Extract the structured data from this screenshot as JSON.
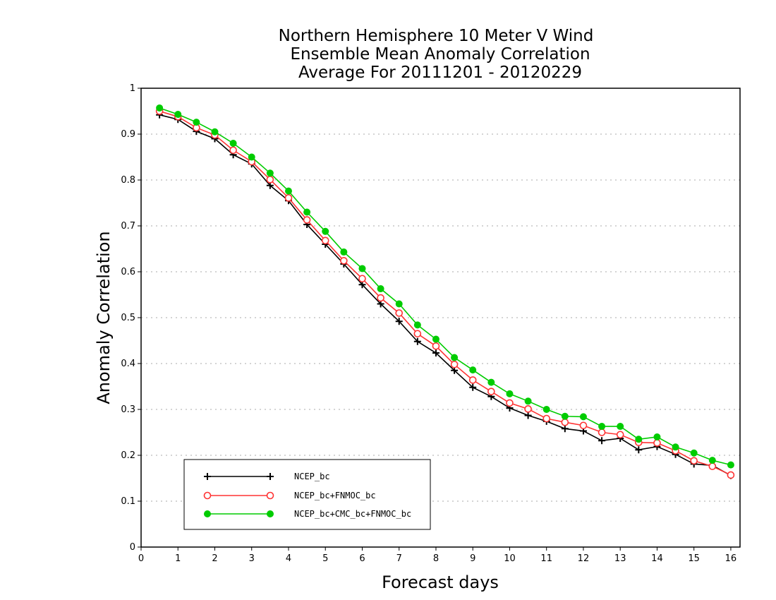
{
  "chart_data": {
    "type": "line",
    "title": [
      "Northern Hemisphere 10 Meter V Wind",
      "Ensemble Mean Anomaly Correlation",
      "Average For 20111201 - 20120229"
    ],
    "xlabel": "Forecast days",
    "ylabel": "Anomaly Correlation",
    "xlim": [
      0,
      16.25
    ],
    "ylim": [
      0,
      1
    ],
    "xticks": [
      "0",
      "1",
      "2",
      "3",
      "4",
      "5",
      "6",
      "7",
      "8",
      "9",
      "10",
      "11",
      "12",
      "13",
      "14",
      "15",
      "16"
    ],
    "yticks": [
      "0",
      "0.1",
      "0.2",
      "0.3",
      "0.4",
      "0.5",
      "0.6",
      "0.7",
      "0.8",
      "0.9",
      "1"
    ],
    "grid": "horizontal dotted",
    "legend_position": "bottom-left",
    "x": [
      0.5,
      1,
      1.5,
      2,
      2.5,
      3,
      3.5,
      4,
      4.5,
      5,
      5.5,
      6,
      6.5,
      7,
      7.5,
      8,
      8.5,
      9,
      9.5,
      10,
      10.5,
      11,
      11.5,
      12,
      12.5,
      13,
      13.5,
      14,
      14.5,
      15,
      15.5,
      16
    ],
    "series": [
      {
        "name": "NCEP_bc",
        "color": "#000000",
        "marker": "plus",
        "values": [
          0.942,
          0.932,
          0.906,
          0.89,
          0.855,
          0.835,
          0.788,
          0.755,
          0.703,
          0.66,
          0.617,
          0.572,
          0.53,
          0.492,
          0.448,
          0.423,
          0.385,
          0.348,
          0.328,
          0.303,
          0.287,
          0.274,
          0.258,
          0.253,
          0.232,
          0.237,
          0.212,
          0.219,
          0.202,
          0.181,
          0.178,
          0.156
        ]
      },
      {
        "name": "NCEP_bc+FNMOC_bc",
        "color": "#ff3333",
        "marker": "open-circle",
        "values": [
          0.95,
          0.938,
          0.914,
          0.898,
          0.865,
          0.84,
          0.801,
          0.761,
          0.713,
          0.668,
          0.624,
          0.585,
          0.543,
          0.51,
          0.465,
          0.438,
          0.398,
          0.364,
          0.339,
          0.314,
          0.301,
          0.28,
          0.272,
          0.265,
          0.25,
          0.245,
          0.228,
          0.227,
          0.21,
          0.188,
          0.176,
          0.157
        ]
      },
      {
        "name": "NCEP_bc+CMC_bc+FNMOC_bc",
        "color": "#00cc00",
        "marker": "filled-circle",
        "values": [
          0.957,
          0.943,
          0.926,
          0.905,
          0.88,
          0.85,
          0.815,
          0.776,
          0.73,
          0.688,
          0.643,
          0.607,
          0.563,
          0.53,
          0.484,
          0.453,
          0.413,
          0.386,
          0.359,
          0.334,
          0.318,
          0.3,
          0.285,
          0.284,
          0.263,
          0.263,
          0.235,
          0.24,
          0.218,
          0.205,
          0.189,
          0.179
        ]
      }
    ]
  }
}
